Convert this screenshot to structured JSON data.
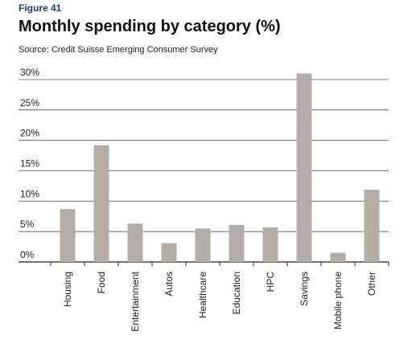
{
  "figure_label": "Figure 41",
  "title": "Monthly spending by category (%)",
  "source": "Source: Credit Suisse Emerging Consumer Survey",
  "chart_data": {
    "type": "bar",
    "title": "Monthly spending by category (%)",
    "xlabel": "",
    "ylabel": "",
    "categories": [
      "Housing",
      "Food",
      "Entertainment",
      "Autos",
      "Healthcare",
      "Education",
      "HPC",
      "Savings",
      "Mobile phone",
      "Other"
    ],
    "values": [
      8.7,
      19.2,
      6.3,
      3.1,
      5.5,
      6.1,
      5.7,
      31.0,
      1.5,
      11.9
    ],
    "ylim": [
      0,
      30
    ],
    "yticks": [
      0,
      5,
      10,
      15,
      20,
      25,
      30
    ],
    "ytick_labels": [
      "0%",
      "5%",
      "10%",
      "15%",
      "20%",
      "25%",
      "30%"
    ],
    "grid": true,
    "bar_color": "#b3ada8"
  }
}
